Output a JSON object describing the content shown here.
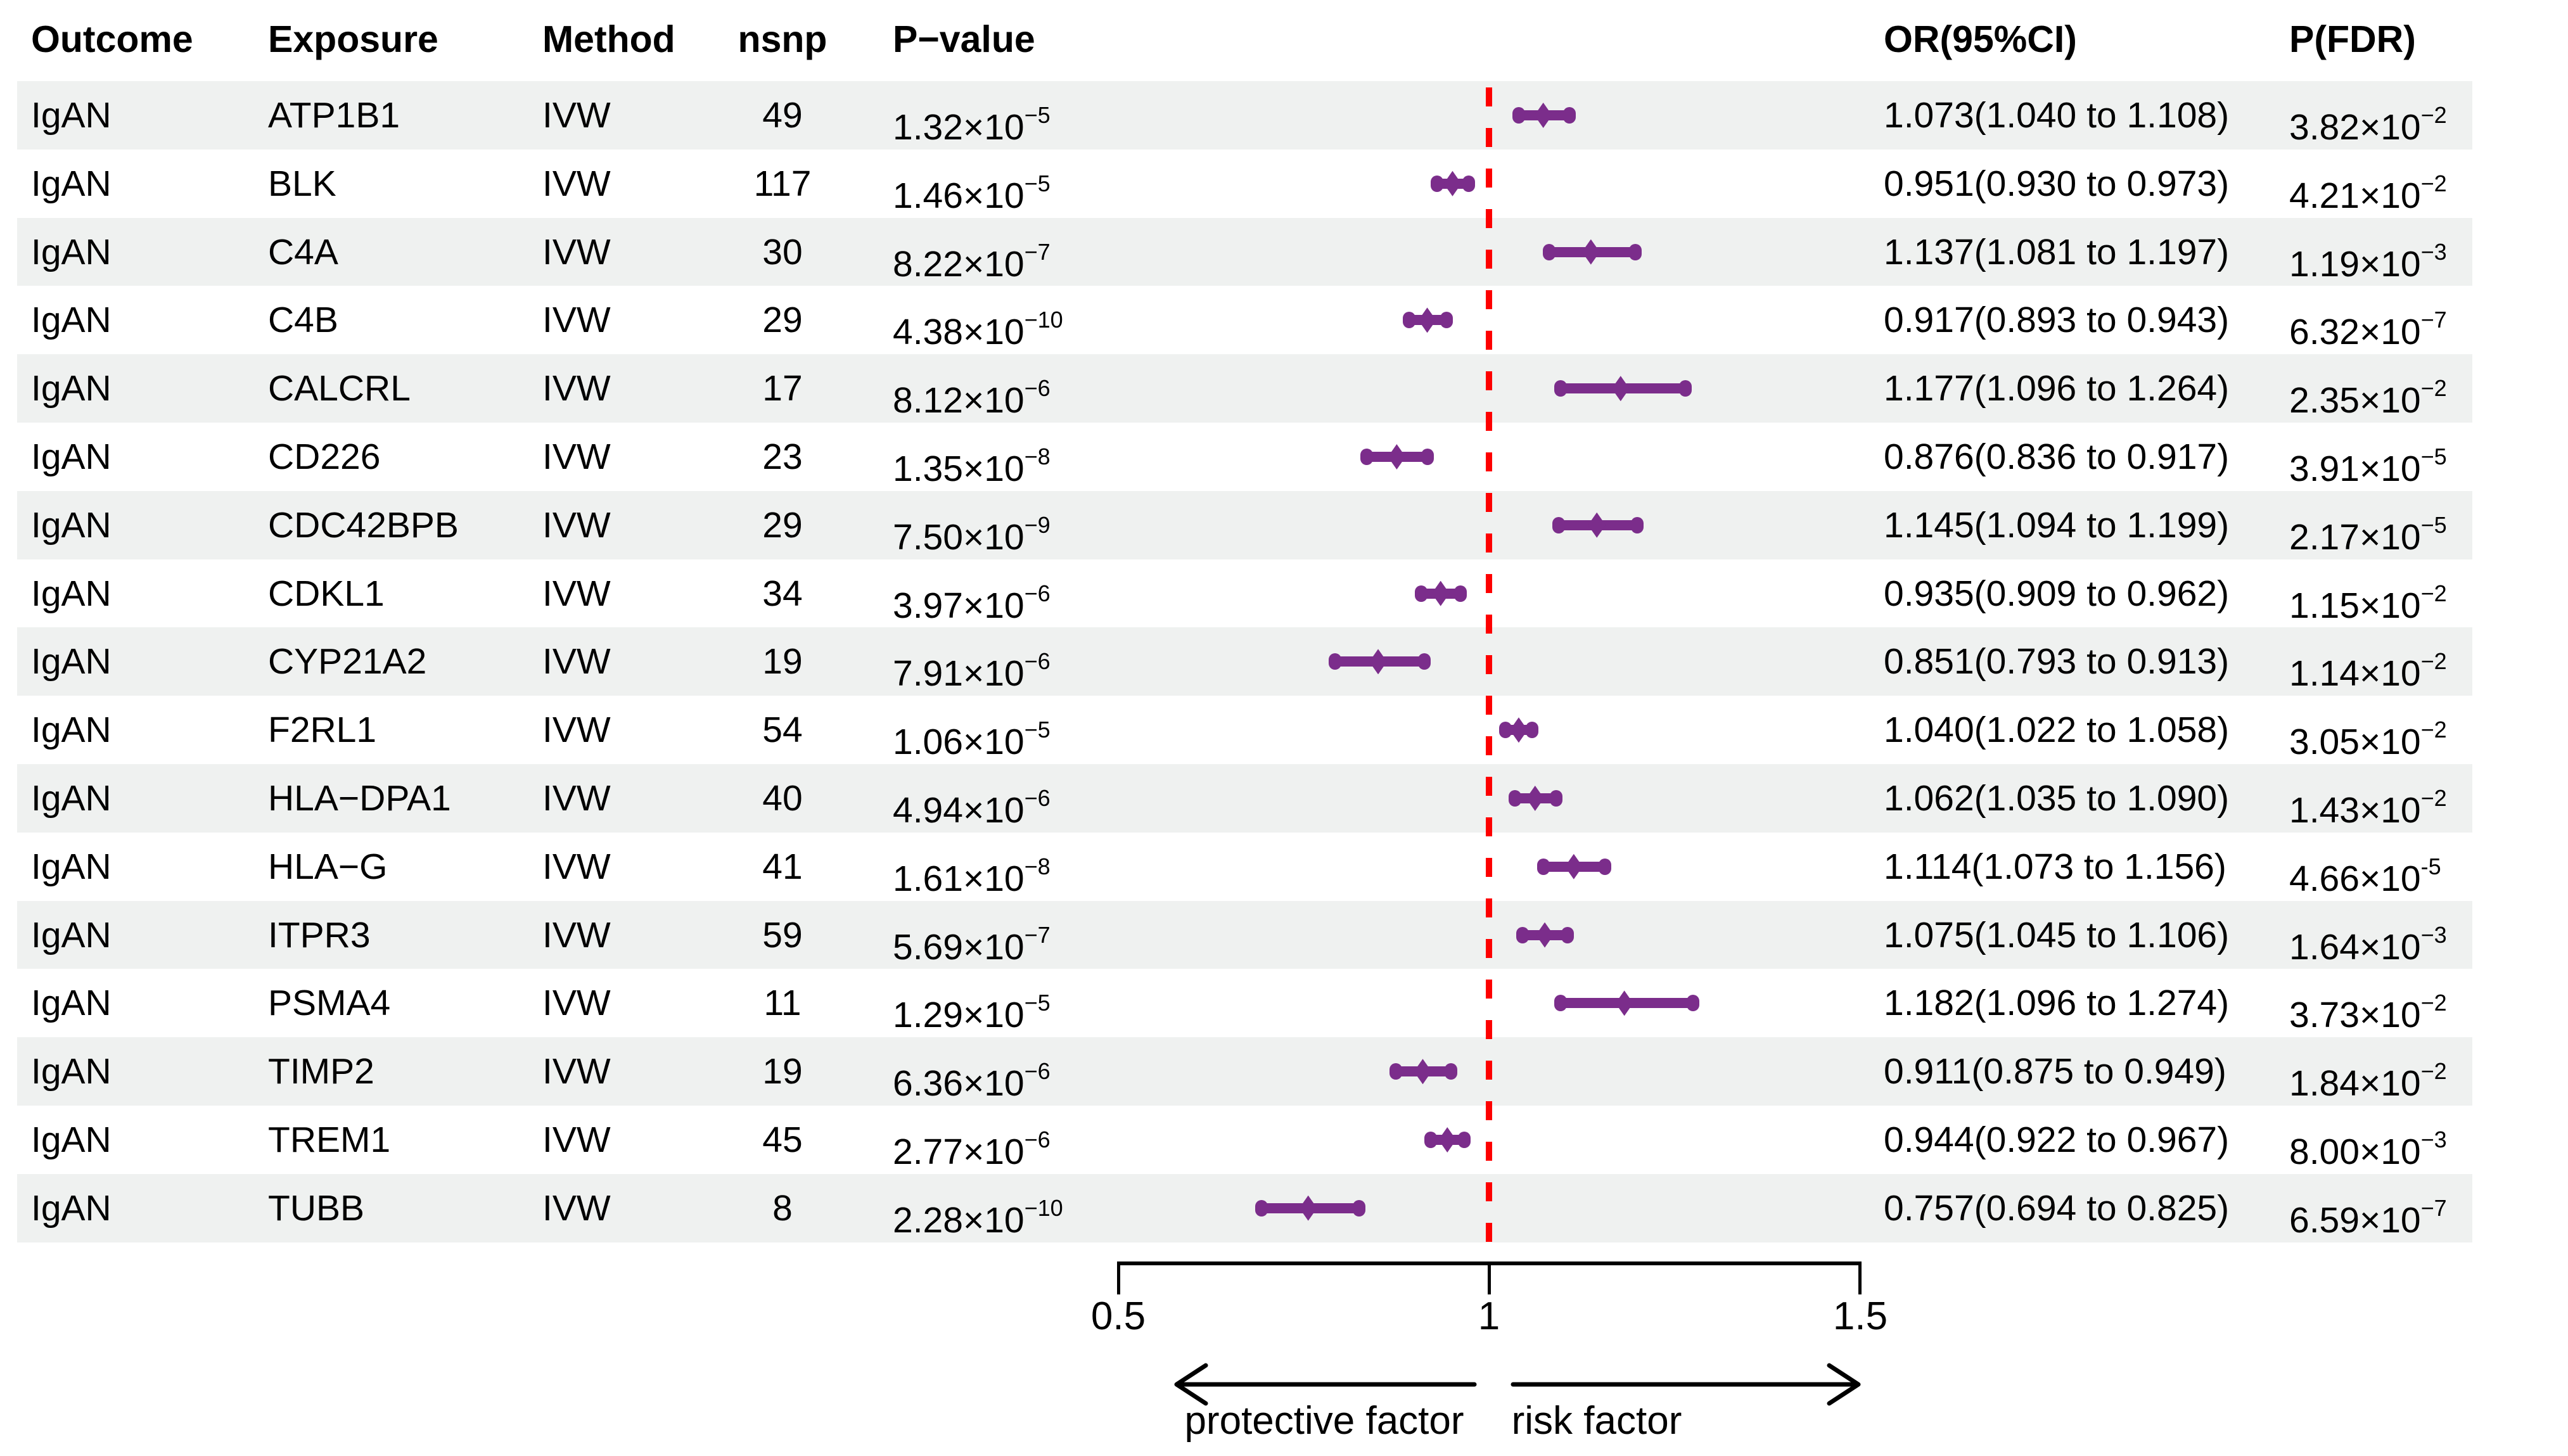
{
  "header": {
    "outcome": "Outcome",
    "exposure": "Exposure",
    "method": "Method",
    "nsnp": "nsnp",
    "p_value": "P−value",
    "or_ci": "OR(95%CI)",
    "p_fdr": "P(FDR)"
  },
  "rows": [
    {
      "outcome": "IgAN",
      "exposure": "ATP1B1",
      "method": "IVW",
      "nsnp": "49",
      "p_base": "1.32×10",
      "p_sup": "−5",
      "or_ci": "1.073(1.040 to 1.108)",
      "fdr_base": "3.82×10",
      "fdr_sup": "−2"
    },
    {
      "outcome": "IgAN",
      "exposure": "BLK",
      "method": "IVW",
      "nsnp": "117",
      "p_base": "1.46×10",
      "p_sup": "−5",
      "or_ci": "0.951(0.930 to 0.973)",
      "fdr_base": "4.21×10",
      "fdr_sup": "−2"
    },
    {
      "outcome": "IgAN",
      "exposure": "C4A",
      "method": "IVW",
      "nsnp": "30",
      "p_base": "8.22×10",
      "p_sup": "−7",
      "or_ci": "1.137(1.081 to 1.197)",
      "fdr_base": "1.19×10",
      "fdr_sup": "−3"
    },
    {
      "outcome": "IgAN",
      "exposure": "C4B",
      "method": "IVW",
      "nsnp": "29",
      "p_base": "4.38×10",
      "p_sup": "−10",
      "or_ci": "0.917(0.893 to 0.943)",
      "fdr_base": "6.32×10",
      "fdr_sup": "−7"
    },
    {
      "outcome": "IgAN",
      "exposure": "CALCRL",
      "method": "IVW",
      "nsnp": "17",
      "p_base": "8.12×10",
      "p_sup": "−6",
      "or_ci": "1.177(1.096 to 1.264)",
      "fdr_base": "2.35×10",
      "fdr_sup": "−2"
    },
    {
      "outcome": "IgAN",
      "exposure": "CD226",
      "method": "IVW",
      "nsnp": "23",
      "p_base": "1.35×10",
      "p_sup": "−8",
      "or_ci": "0.876(0.836 to 0.917)",
      "fdr_base": "3.91×10",
      "fdr_sup": "−5"
    },
    {
      "outcome": "IgAN",
      "exposure": "CDC42BPB",
      "method": "IVW",
      "nsnp": "29",
      "p_base": "7.50×10",
      "p_sup": "−9",
      "or_ci": "1.145(1.094 to 1.199)",
      "fdr_base": "2.17×10",
      "fdr_sup": "−5"
    },
    {
      "outcome": "IgAN",
      "exposure": "CDKL1",
      "method": "IVW",
      "nsnp": "34",
      "p_base": "3.97×10",
      "p_sup": "−6",
      "or_ci": "0.935(0.909 to 0.962)",
      "fdr_base": "1.15×10",
      "fdr_sup": "−2"
    },
    {
      "outcome": "IgAN",
      "exposure": "CYP21A2",
      "method": "IVW",
      "nsnp": "19",
      "p_base": "7.91×10",
      "p_sup": "−6",
      "or_ci": "0.851(0.793 to 0.913)",
      "fdr_base": "1.14×10",
      "fdr_sup": "−2"
    },
    {
      "outcome": "IgAN",
      "exposure": "F2RL1",
      "method": "IVW",
      "nsnp": "54",
      "p_base": "1.06×10",
      "p_sup": "−5",
      "or_ci": "1.040(1.022 to 1.058)",
      "fdr_base": "3.05×10",
      "fdr_sup": "−2"
    },
    {
      "outcome": "IgAN",
      "exposure": "HLA−DPA1",
      "method": "IVW",
      "nsnp": "40",
      "p_base": "4.94×10",
      "p_sup": "−6",
      "or_ci": "1.062(1.035 to 1.090)",
      "fdr_base": "1.43×10",
      "fdr_sup": "−2"
    },
    {
      "outcome": "IgAN",
      "exposure": "HLA−G",
      "method": "IVW",
      "nsnp": "41",
      "p_base": "1.61×10",
      "p_sup": "−8",
      "or_ci": "1.114(1.073 to 1.156)",
      "fdr_base": "4.66×10",
      "fdr_sup": "-5"
    },
    {
      "outcome": "IgAN",
      "exposure": "ITPR3",
      "method": "IVW",
      "nsnp": "59",
      "p_base": "5.69×10",
      "p_sup": "−7",
      "or_ci": "1.075(1.045 to 1.106)",
      "fdr_base": "1.64×10",
      "fdr_sup": "−3"
    },
    {
      "outcome": "IgAN",
      "exposure": "PSMA4",
      "method": "IVW",
      "nsnp": "11",
      "p_base": "1.29×10",
      "p_sup": "−5",
      "or_ci": "1.182(1.096 to 1.274)",
      "fdr_base": "3.73×10",
      "fdr_sup": "−2"
    },
    {
      "outcome": "IgAN",
      "exposure": "TIMP2",
      "method": "IVW",
      "nsnp": "19",
      "p_base": "6.36×10",
      "p_sup": "−6",
      "or_ci": "0.911(0.875 to 0.949)",
      "fdr_base": "1.84×10",
      "fdr_sup": "−2"
    },
    {
      "outcome": "IgAN",
      "exposure": "TREM1",
      "method": "IVW",
      "nsnp": "45",
      "p_base": "2.77×10",
      "p_sup": "−6",
      "or_ci": "0.944(0.922 to 0.967)",
      "fdr_base": "8.00×10",
      "fdr_sup": "−3"
    },
    {
      "outcome": "IgAN",
      "exposure": "TUBB",
      "method": "IVW",
      "nsnp": "8",
      "p_base": "2.28×10",
      "p_sup": "−10",
      "or_ci": "0.757(0.694 to 0.825)",
      "fdr_base": "6.59×10",
      "fdr_sup": "−7"
    }
  ],
  "axis": {
    "tick_labels": [
      "0.5",
      "1",
      "1.5"
    ],
    "tick_values": [
      0.5,
      1,
      1.5
    ],
    "reference_value": 1
  },
  "annotations": {
    "protective_label": "protective factor",
    "risk_label": "risk factor"
  },
  "colors": {
    "marker": "#7b2d8b",
    "reference_line": "#fe0000",
    "stripe": "#eff1f0",
    "text": "#000000"
  },
  "chart_data": {
    "type": "forest",
    "title": "",
    "xlabel": "",
    "x_axis": {
      "range": [
        0.5,
        1.5
      ],
      "ticks": [
        0.5,
        1,
        1.5
      ],
      "reference_line": 1
    },
    "arrow_labels": {
      "left_of_1": "protective factor",
      "right_of_1": "risk factor"
    },
    "outcome": "IgAN",
    "method": "IVW",
    "series": [
      {
        "exposure": "ATP1B1",
        "nsnp": 49,
        "p_value": 1.32e-05,
        "or": 1.073,
        "ci_low": 1.04,
        "ci_high": 1.108,
        "p_fdr": 0.0382
      },
      {
        "exposure": "BLK",
        "nsnp": 117,
        "p_value": 1.46e-05,
        "or": 0.951,
        "ci_low": 0.93,
        "ci_high": 0.973,
        "p_fdr": 0.0421
      },
      {
        "exposure": "C4A",
        "nsnp": 30,
        "p_value": 8.22e-07,
        "or": 1.137,
        "ci_low": 1.081,
        "ci_high": 1.197,
        "p_fdr": 0.00119
      },
      {
        "exposure": "C4B",
        "nsnp": 29,
        "p_value": 4.38e-10,
        "or": 0.917,
        "ci_low": 0.893,
        "ci_high": 0.943,
        "p_fdr": 6.32e-07
      },
      {
        "exposure": "CALCRL",
        "nsnp": 17,
        "p_value": 8.12e-06,
        "or": 1.177,
        "ci_low": 1.096,
        "ci_high": 1.264,
        "p_fdr": 0.0235
      },
      {
        "exposure": "CD226",
        "nsnp": 23,
        "p_value": 1.35e-08,
        "or": 0.876,
        "ci_low": 0.836,
        "ci_high": 0.917,
        "p_fdr": 3.91e-05
      },
      {
        "exposure": "CDC42BPB",
        "nsnp": 29,
        "p_value": 7.5e-09,
        "or": 1.145,
        "ci_low": 1.094,
        "ci_high": 1.199,
        "p_fdr": 2.17e-05
      },
      {
        "exposure": "CDKL1",
        "nsnp": 34,
        "p_value": 3.97e-06,
        "or": 0.935,
        "ci_low": 0.909,
        "ci_high": 0.962,
        "p_fdr": 0.0115
      },
      {
        "exposure": "CYP21A2",
        "nsnp": 19,
        "p_value": 7.91e-06,
        "or": 0.851,
        "ci_low": 0.793,
        "ci_high": 0.913,
        "p_fdr": 0.0114
      },
      {
        "exposure": "F2RL1",
        "nsnp": 54,
        "p_value": 1.06e-05,
        "or": 1.04,
        "ci_low": 1.022,
        "ci_high": 1.058,
        "p_fdr": 0.0305
      },
      {
        "exposure": "HLA-DPA1",
        "nsnp": 40,
        "p_value": 4.94e-06,
        "or": 1.062,
        "ci_low": 1.035,
        "ci_high": 1.09,
        "p_fdr": 0.0143
      },
      {
        "exposure": "HLA-G",
        "nsnp": 41,
        "p_value": 1.61e-08,
        "or": 1.114,
        "ci_low": 1.073,
        "ci_high": 1.156,
        "p_fdr": 4.66e-05
      },
      {
        "exposure": "ITPR3",
        "nsnp": 59,
        "p_value": 5.69e-07,
        "or": 1.075,
        "ci_low": 1.045,
        "ci_high": 1.106,
        "p_fdr": 0.00164
      },
      {
        "exposure": "PSMA4",
        "nsnp": 11,
        "p_value": 1.29e-05,
        "or": 1.182,
        "ci_low": 1.096,
        "ci_high": 1.274,
        "p_fdr": 0.0373
      },
      {
        "exposure": "TIMP2",
        "nsnp": 19,
        "p_value": 6.36e-06,
        "or": 0.911,
        "ci_low": 0.875,
        "ci_high": 0.949,
        "p_fdr": 0.0184
      },
      {
        "exposure": "TREM1",
        "nsnp": 45,
        "p_value": 2.77e-06,
        "or": 0.944,
        "ci_low": 0.922,
        "ci_high": 0.967,
        "p_fdr": 0.008
      },
      {
        "exposure": "TUBB",
        "nsnp": 8,
        "p_value": 2.28e-10,
        "or": 0.757,
        "ci_low": 0.694,
        "ci_high": 0.825,
        "p_fdr": 6.59e-07
      }
    ]
  }
}
